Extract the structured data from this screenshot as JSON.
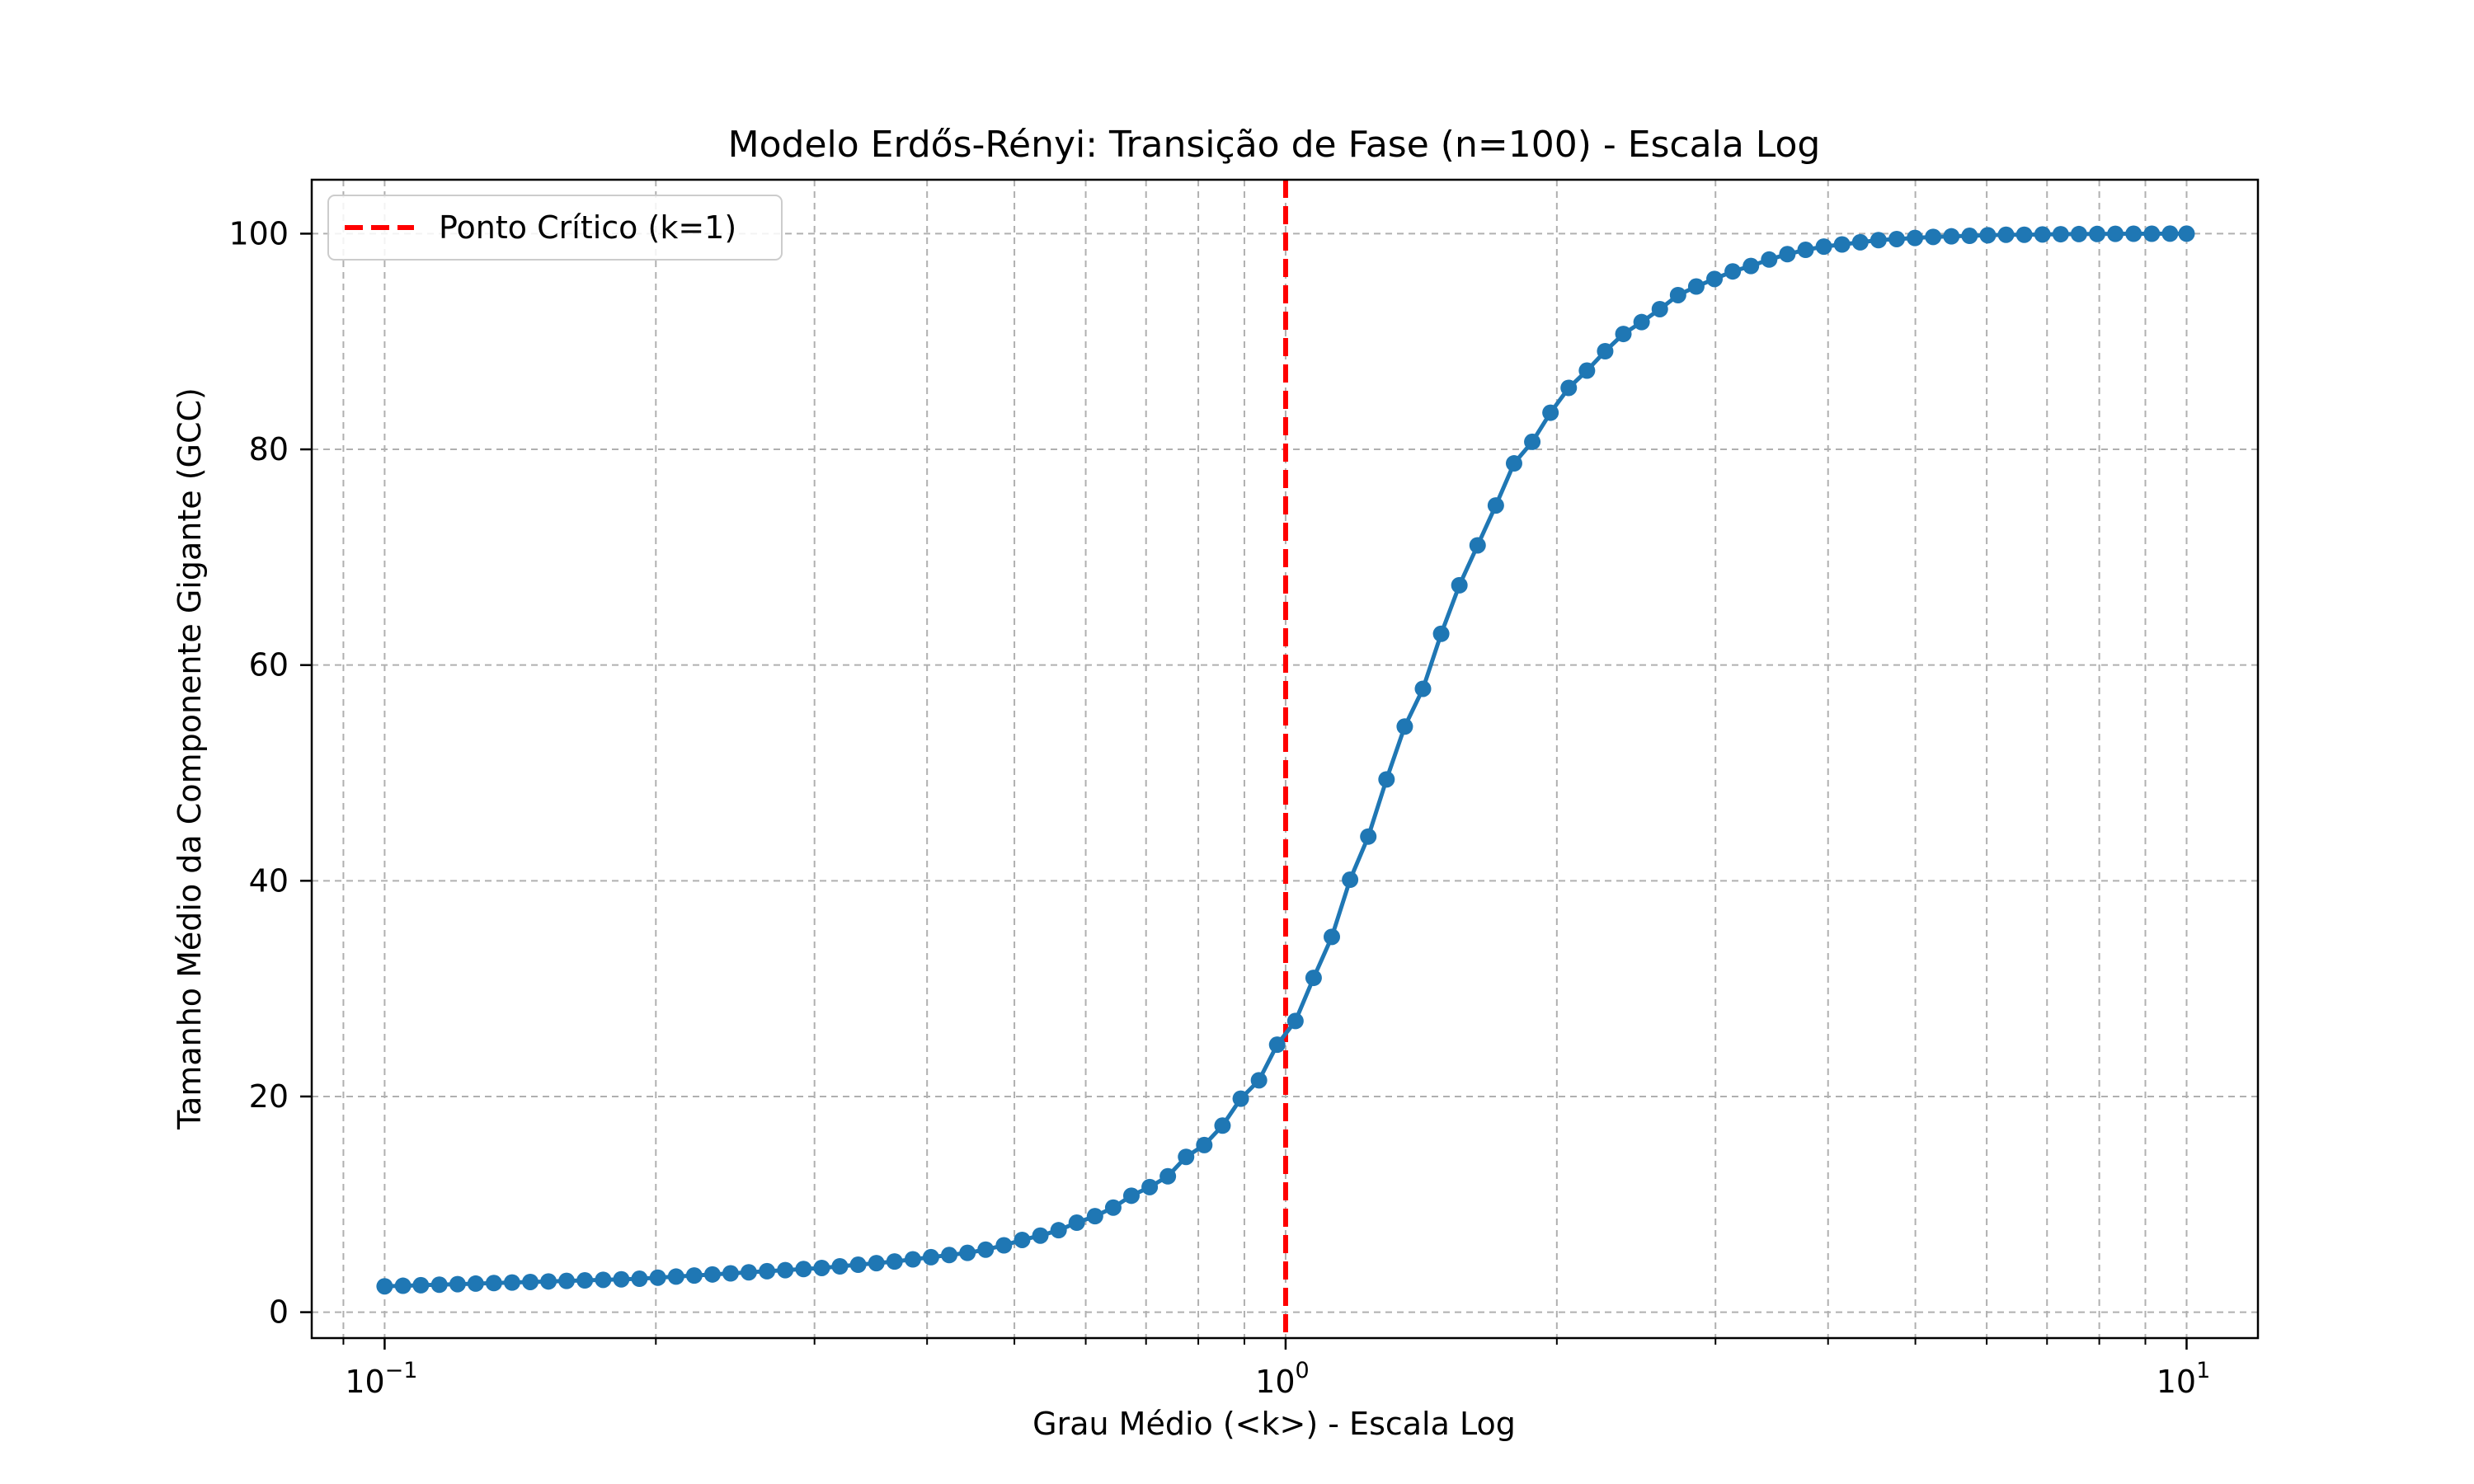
{
  "chart_data": {
    "type": "line",
    "title": "Modelo Erdős-Rényi: Transição de Fase (n=100) - Escala Log",
    "xlabel": "Grau Médio (<k>) - Escala Log",
    "ylabel": "Tamanho Médio da Componente Gigante (GCC)",
    "xscale": "log",
    "xlim": [
      0.083,
      12.0
    ],
    "ylim": [
      -2.4,
      105
    ],
    "grid": "both",
    "legend_position": "top-left",
    "x_tick_labels": [
      {
        "value": 0.1,
        "base": "10",
        "exp": "−1"
      },
      {
        "value": 1,
        "base": "10",
        "exp": "0"
      },
      {
        "value": 10,
        "base": "10",
        "exp": "1"
      }
    ],
    "y_ticks": [
      0,
      20,
      40,
      60,
      80,
      100
    ],
    "y_tick_labels": [
      "0",
      "20",
      "40",
      "60",
      "80",
      "100"
    ],
    "series": [
      {
        "name": "",
        "color": "#1f77b4",
        "marker": "circle",
        "x": [
          0.1,
          0.1048,
          0.1097,
          0.115,
          0.1205,
          0.1262,
          0.1322,
          0.1385,
          0.1451,
          0.152,
          0.1592,
          0.1668,
          0.1748,
          0.1831,
          0.1918,
          0.201,
          0.2106,
          0.2206,
          0.2311,
          0.2421,
          0.2536,
          0.2657,
          0.2784,
          0.2917,
          0.3056,
          0.3201,
          0.3354,
          0.3514,
          0.3681,
          0.3857,
          0.404,
          0.4233,
          0.4435,
          0.4646,
          0.4868,
          0.51,
          0.5343,
          0.5598,
          0.5864,
          0.6144,
          0.6437,
          0.6743,
          0.7065,
          0.7401,
          0.7754,
          0.8123,
          0.8511,
          0.8917,
          0.9342,
          0.9787,
          1.0254,
          1.0742,
          1.1254,
          1.1791,
          1.2353,
          1.2942,
          1.3559,
          1.4205,
          1.4882,
          1.5591,
          1.6334,
          1.7113,
          1.7929,
          1.8784,
          1.9679,
          2.0617,
          2.16,
          2.2629,
          2.3708,
          2.4838,
          2.6022,
          2.7263,
          2.8562,
          2.9924,
          3.135,
          3.2844,
          3.441,
          3.605,
          3.7769,
          3.9569,
          4.1455,
          4.3431,
          4.5502,
          4.767,
          4.9943,
          5.2324,
          5.4818,
          5.7431,
          6.0168,
          6.3036,
          6.6041,
          6.919,
          7.2488,
          7.5943,
          7.9563,
          8.3356,
          8.7329,
          9.1492,
          9.5853,
          10.0
        ],
        "y": [
          2.4,
          2.45,
          2.5,
          2.55,
          2.6,
          2.65,
          2.7,
          2.75,
          2.8,
          2.85,
          2.9,
          2.95,
          3.0,
          3.05,
          3.1,
          3.2,
          3.3,
          3.4,
          3.5,
          3.6,
          3.7,
          3.8,
          3.9,
          4.0,
          4.1,
          4.25,
          4.4,
          4.55,
          4.7,
          4.9,
          5.1,
          5.3,
          5.5,
          5.8,
          6.2,
          6.7,
          7.1,
          7.6,
          8.3,
          8.9,
          9.7,
          10.8,
          11.6,
          12.6,
          14.4,
          15.5,
          17.3,
          19.8,
          21.5,
          24.8,
          27.0,
          31.0,
          34.8,
          40.1,
          44.1,
          49.4,
          54.3,
          57.8,
          62.9,
          67.4,
          71.1,
          74.8,
          78.7,
          80.7,
          83.4,
          85.7,
          87.3,
          89.1,
          90.7,
          91.8,
          93.0,
          94.3,
          95.1,
          95.8,
          96.5,
          97.0,
          97.6,
          98.1,
          98.5,
          98.8,
          99.0,
          99.2,
          99.4,
          99.5,
          99.6,
          99.7,
          99.75,
          99.8,
          99.85,
          99.9,
          99.9,
          99.93,
          99.95,
          99.96,
          99.97,
          99.98,
          99.99,
          99.99,
          100.0,
          100.0
        ]
      }
    ],
    "reference_lines": [
      {
        "label": "Ponto Crítico (k=1)",
        "x": 1,
        "color": "#ff0000",
        "style": "dashed"
      }
    ]
  }
}
